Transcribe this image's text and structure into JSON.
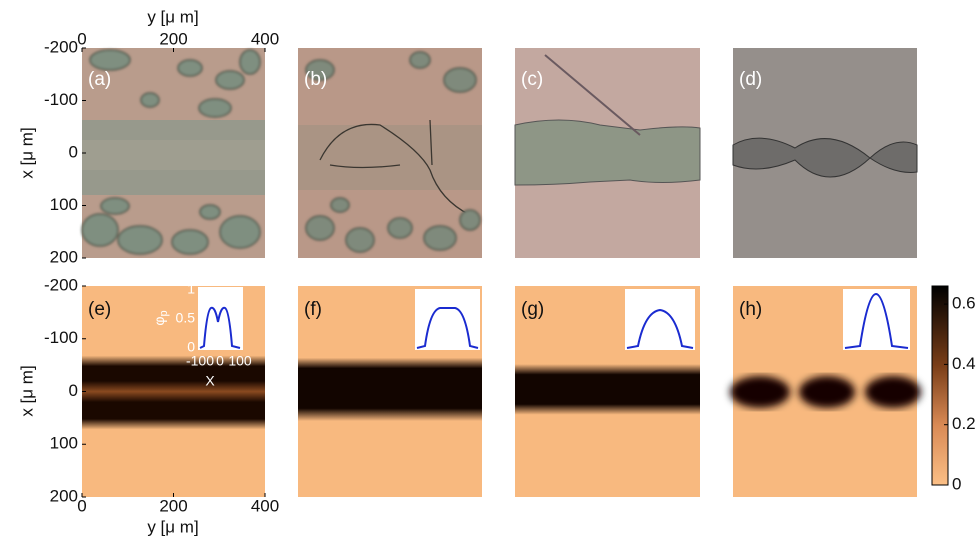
{
  "figure": {
    "top": {
      "x_label": "y [μ m]",
      "x_ticks": [
        0,
        200,
        400
      ],
      "y_label": "x [μ m]",
      "y_ticks": [
        -200,
        -100,
        0,
        100,
        200
      ]
    },
    "bottom": {
      "x_label": "y [μ m]",
      "x_ticks": [
        0,
        200,
        400
      ],
      "y_label": "x [μ m]",
      "y_ticks": [
        -200,
        -100,
        0,
        100,
        200
      ]
    },
    "axis_range": {
      "x": [
        0,
        400
      ],
      "y": [
        -200,
        200
      ]
    },
    "panels": [
      "(a)",
      "(b)",
      "(c)",
      "(d)",
      "(e)",
      "(f)",
      "(g)",
      "(h)"
    ],
    "inset": {
      "y_label": "φ",
      "y_label_sub": "p",
      "y_ticks": [
        0,
        0.5,
        1
      ],
      "x_ticks": [
        -100,
        0,
        100
      ],
      "x_label": "X"
    },
    "colorbar": {
      "range": [
        0,
        0.66
      ],
      "ticks": [
        0,
        0.2,
        0.4,
        0.6
      ]
    }
  }
}
